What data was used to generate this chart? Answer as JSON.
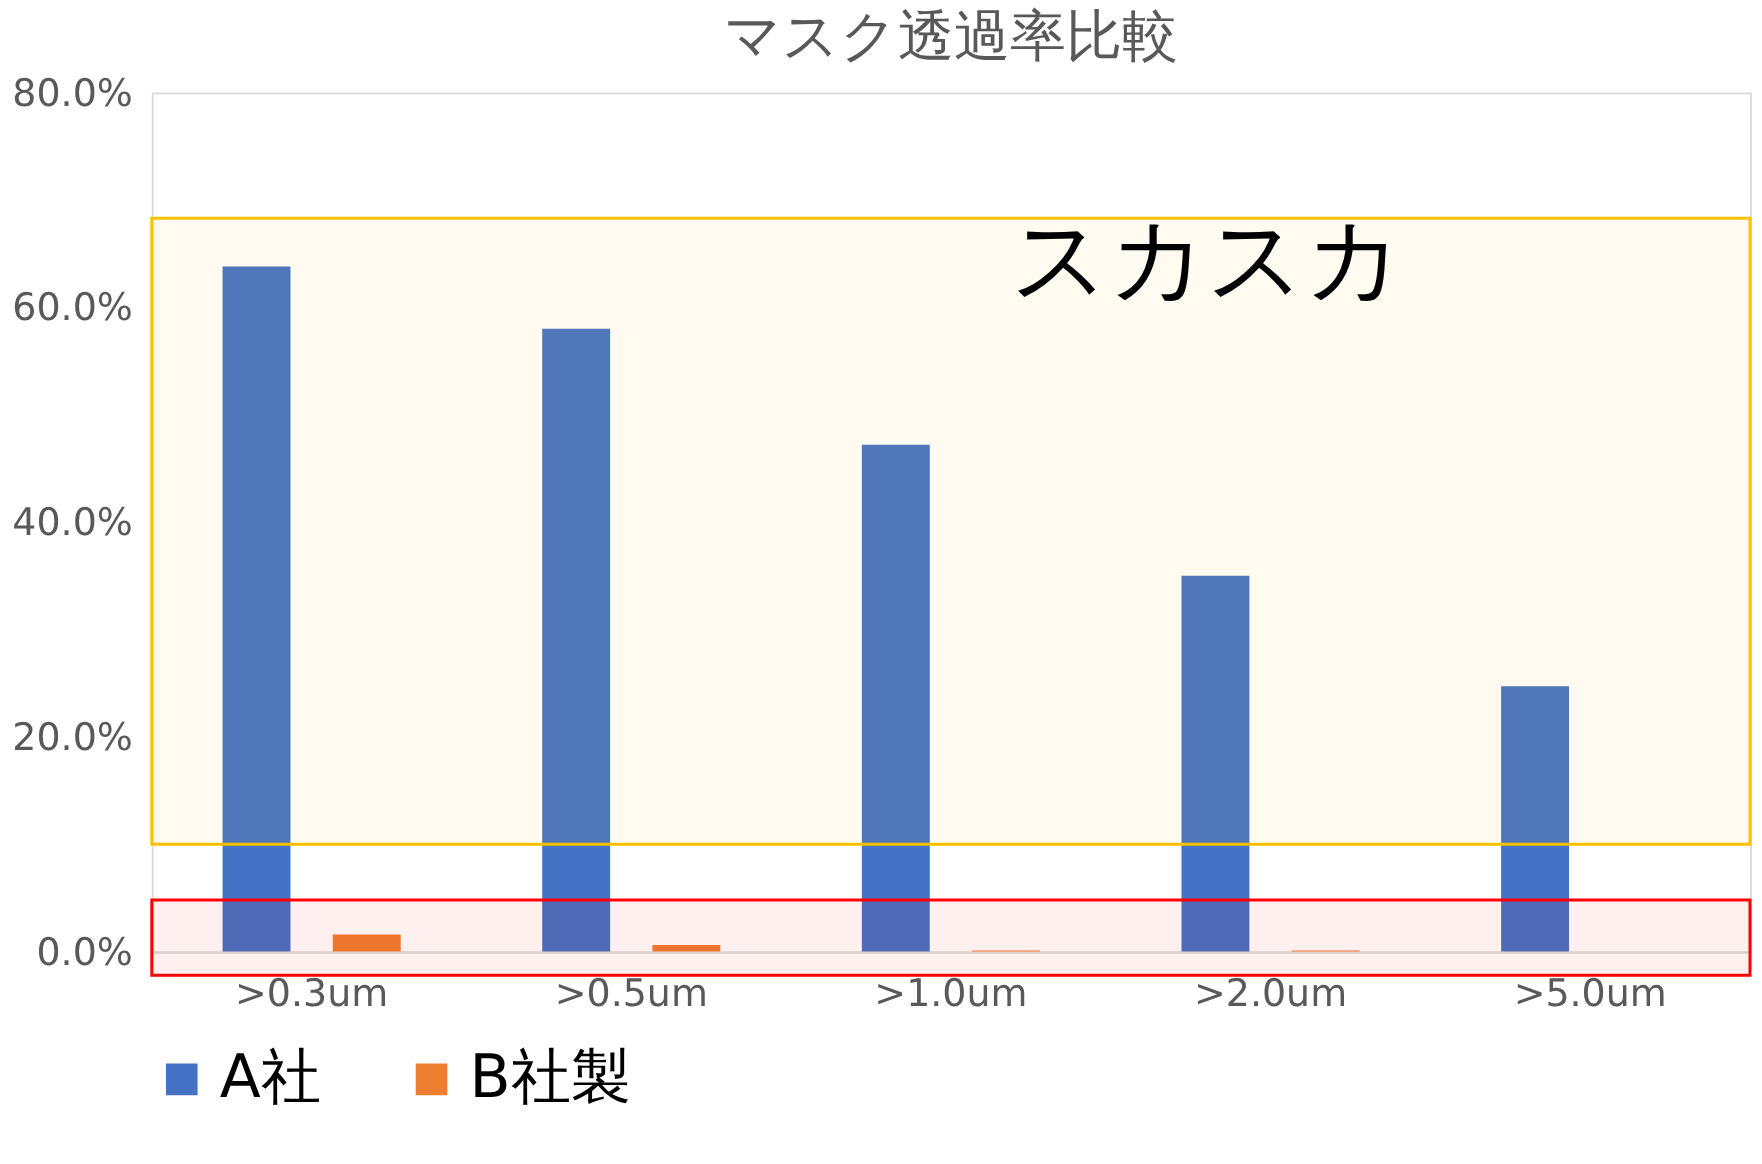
{
  "chart_data": {
    "type": "bar",
    "title": "マスク透過率比較",
    "categories": [
      ">0.3um",
      ">0.5um",
      ">1.0um",
      ">2.0um",
      ">5.0um"
    ],
    "series": [
      {
        "name": "A社",
        "color": "#4472c4",
        "values": [
          63.8,
          58.0,
          47.2,
          35.0,
          24.7
        ]
      },
      {
        "name": "B社製",
        "color": "#ed7d31",
        "values": [
          1.6,
          0.6,
          0.1,
          0.1,
          0
        ]
      }
    ],
    "ylim": [
      0,
      80
    ],
    "yticks": [
      {
        "value": 0,
        "label": "0.0%"
      },
      {
        "value": 20,
        "label": "20.0%"
      },
      {
        "value": 40,
        "label": "40.0%"
      },
      {
        "value": 60,
        "label": "60.0%"
      },
      {
        "value": 80,
        "label": "80.0%"
      }
    ],
    "bands": [
      {
        "axis": "y",
        "from": 10,
        "to": 68.3,
        "color": "#ffc000"
      },
      {
        "axis": "y",
        "from": -2.2,
        "to": 4.8,
        "color": "#ff0000"
      }
    ],
    "annotations": [
      "スカスカ"
    ],
    "grid": false,
    "legend": "bottom"
  }
}
